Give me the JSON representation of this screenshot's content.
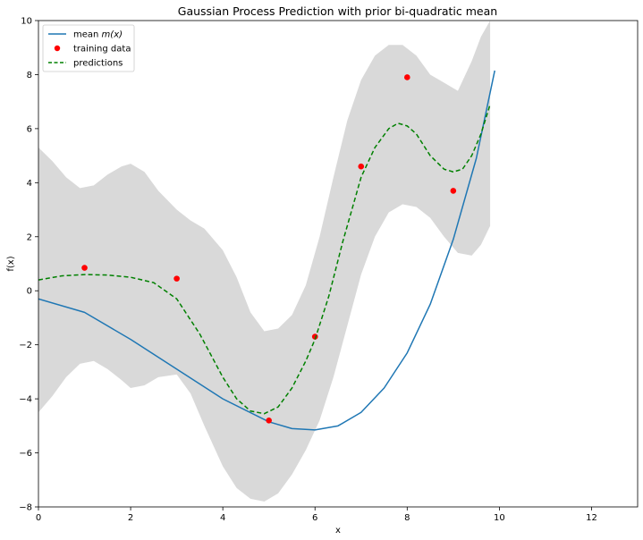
{
  "chart_data": {
    "type": "line",
    "title": "Gaussian Process Prediction with prior bi-quadratic mean",
    "xlabel": "x",
    "ylabel": "f(x)",
    "xlim": [
      0,
      13
    ],
    "ylim": [
      -8,
      10
    ],
    "xticks": [
      0,
      2,
      4,
      6,
      8,
      10,
      12
    ],
    "yticks": [
      -8,
      -6,
      -4,
      -2,
      0,
      2,
      4,
      6,
      8,
      10
    ],
    "grid": false,
    "legend": {
      "placement": "top-left",
      "entries": [
        {
          "label_prefix": "mean ",
          "label_math": "m(x)",
          "style": "solid",
          "color": "#1f77b4"
        },
        {
          "label": "training data",
          "style": "marker",
          "color": "#ff0000"
        },
        {
          "label": "predictions",
          "style": "dashed",
          "color": "#008000"
        }
      ]
    },
    "series": [
      {
        "name": "mean m(x)",
        "kind": "line",
        "color": "#1f77b4",
        "x": [
          0,
          1,
          2,
          3,
          4,
          5,
          5.5,
          6,
          6.5,
          7,
          7.5,
          8,
          8.5,
          9,
          9.5,
          9.9
        ],
        "y": [
          -0.3,
          -0.8,
          -1.8,
          -2.9,
          -4.0,
          -4.85,
          -5.1,
          -5.15,
          -5.0,
          -4.5,
          -3.6,
          -2.3,
          -0.5,
          1.9,
          4.9,
          8.15
        ]
      },
      {
        "name": "training data",
        "kind": "scatter",
        "color": "#ff0000",
        "x": [
          1,
          3,
          5,
          6,
          7,
          8,
          9
        ],
        "y": [
          0.85,
          0.45,
          -4.8,
          -1.7,
          4.6,
          7.9,
          3.7
        ]
      },
      {
        "name": "predictions",
        "kind": "line",
        "style": "dashed",
        "color": "#008000",
        "x": [
          0,
          0.5,
          1,
          1.5,
          2,
          2.5,
          3,
          3.5,
          4,
          4.3,
          4.6,
          4.9,
          5.2,
          5.5,
          5.8,
          6.0,
          6.3,
          6.6,
          7.0,
          7.3,
          7.6,
          7.8,
          8.0,
          8.2,
          8.5,
          8.8,
          9.0,
          9.2,
          9.4,
          9.6,
          9.8
        ],
        "y": [
          0.4,
          0.55,
          0.6,
          0.58,
          0.5,
          0.3,
          -0.3,
          -1.6,
          -3.2,
          -4.0,
          -4.45,
          -4.55,
          -4.3,
          -3.6,
          -2.6,
          -1.8,
          -0.2,
          1.8,
          4.2,
          5.3,
          6.0,
          6.2,
          6.1,
          5.8,
          5.0,
          4.5,
          4.4,
          4.5,
          5.0,
          5.8,
          6.9
        ]
      }
    ],
    "confidence_band": {
      "color": "#d9d9d9",
      "x": [
        0,
        0.3,
        0.6,
        0.9,
        1.2,
        1.5,
        1.8,
        2.0,
        2.3,
        2.6,
        3.0,
        3.3,
        3.6,
        4.0,
        4.3,
        4.6,
        4.9,
        5.2,
        5.5,
        5.8,
        6.1,
        6.4,
        6.7,
        7.0,
        7.3,
        7.6,
        7.9,
        8.2,
        8.5,
        8.8,
        9.1,
        9.4,
        9.6,
        9.8
      ],
      "upper": [
        5.3,
        4.8,
        4.2,
        3.8,
        3.9,
        4.3,
        4.6,
        4.7,
        4.4,
        3.7,
        3.0,
        2.6,
        2.3,
        1.5,
        0.5,
        -0.8,
        -1.5,
        -1.4,
        -0.9,
        0.2,
        2.0,
        4.2,
        6.3,
        7.8,
        8.7,
        9.1,
        9.1,
        8.7,
        8.0,
        7.7,
        7.4,
        8.5,
        9.4,
        10.0
      ],
      "lower": [
        -4.5,
        -3.9,
        -3.2,
        -2.7,
        -2.6,
        -2.9,
        -3.3,
        -3.6,
        -3.5,
        -3.2,
        -3.1,
        -3.8,
        -5.0,
        -6.5,
        -7.3,
        -7.7,
        -7.8,
        -7.5,
        -6.8,
        -5.9,
        -4.8,
        -3.2,
        -1.3,
        0.6,
        2.0,
        2.9,
        3.2,
        3.1,
        2.7,
        2.0,
        1.4,
        1.3,
        1.7,
        2.4
      ]
    }
  }
}
